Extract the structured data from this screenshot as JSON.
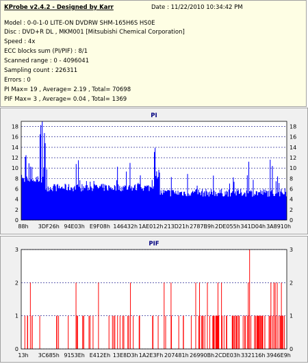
{
  "header": {
    "title": "KProbe v2.4.2 - Designed by Karr",
    "date": "Date : 11/22/2010 10:34:42 PM",
    "lines": [
      "Model : 0-0-1-0 LITE-ON DVDRW SHM-165H6S HS0E",
      "Disc : DVD+R DL , MKM001 [Mitsubishi Chemical Corporation]",
      "Speed : 4x",
      "ECC blocks sum (PI/PIF) : 8/1",
      "Scanned range : 0 - 4096041",
      "Sampling count : 226311",
      "Errors : 0",
      "PI Max= 19 , Average= 2.19 , Total= 70698",
      "PIF Max= 3 , Average= 0.04 , Total= 1369"
    ]
  },
  "colors": {
    "pi": "#0000ff",
    "pif": "#ff0000",
    "title": "#000080",
    "grid": "#000080"
  },
  "chart_data": [
    {
      "type": "area",
      "title": "PI",
      "ylim": [
        0,
        19
      ],
      "yticks": [
        0,
        2,
        4,
        6,
        8,
        10,
        12,
        14,
        16,
        18
      ],
      "x_tick_labels": [
        "88h",
        "3DF26h",
        "94E03h",
        "E9F08h",
        "146432h",
        "1AE012h",
        "213D21h",
        "2787B9h",
        "2DE055h",
        "341D04h",
        "3A8910h"
      ],
      "max": 19,
      "average": 2.19
    },
    {
      "type": "bar",
      "title": "PIF",
      "ylim": [
        0,
        3
      ],
      "yticks": [
        0,
        1,
        2,
        3
      ],
      "x_tick_labels": [
        "13h",
        "3C685h",
        "9153Eh",
        "E412Eh",
        "13E8D3h",
        "1A2E3Fh",
        "207481h",
        "26990Bh",
        "2CDE03h",
        "332116h",
        "3946E9h"
      ],
      "max": 3,
      "average": 0.04
    }
  ]
}
